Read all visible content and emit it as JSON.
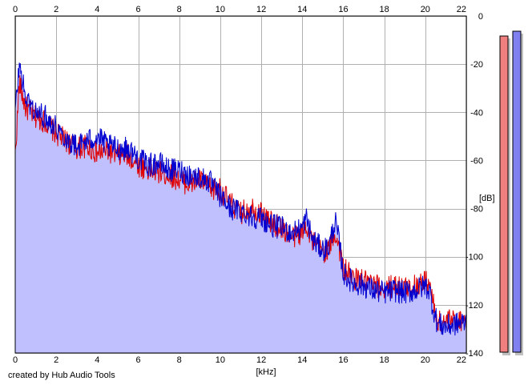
{
  "footer": {
    "credit": "created by Hub Audio Tools"
  },
  "chart_data": {
    "type": "area",
    "xlabel": "[kHz]",
    "ylabel": "[dB]",
    "xlim": [
      0,
      22
    ],
    "ylim": [
      -140,
      0
    ],
    "x_ticks": [
      0,
      2,
      4,
      6,
      8,
      10,
      12,
      14,
      16,
      18,
      20,
      22
    ],
    "y_ticks": [
      0,
      -20,
      -40,
      -60,
      -80,
      -100,
      -120,
      -140
    ],
    "grid": true,
    "series": [
      {
        "color": "#e00000",
        "x": [
          0,
          0.2,
          0.5,
          1,
          1.5,
          2,
          2.5,
          3,
          3.5,
          4,
          4.5,
          5,
          5.5,
          6,
          6.5,
          7,
          7.5,
          8,
          8.5,
          9,
          9.5,
          10,
          10.5,
          11,
          11.5,
          12,
          12.5,
          13,
          13.5,
          14,
          14.2,
          14.5,
          15,
          15.3,
          15.6,
          15.8,
          16,
          16.5,
          17,
          17.5,
          18,
          18.5,
          19,
          19.5,
          20,
          20.2,
          20.4,
          20.6,
          21,
          21.5,
          22
        ],
        "values": [
          -58,
          -28,
          -38,
          -42,
          -44,
          -49,
          -52,
          -55,
          -54,
          -57,
          -56,
          -58,
          -58,
          -62,
          -64,
          -65,
          -66,
          -68,
          -70,
          -68,
          -72,
          -72,
          -78,
          -82,
          -79,
          -82,
          -86,
          -88,
          -92,
          -90,
          -86,
          -94,
          -98,
          -97,
          -90,
          -96,
          -105,
          -109,
          -110,
          -112,
          -113,
          -112,
          -113,
          -112,
          -110,
          -111,
          -120,
          -127,
          -127,
          -126,
          -126
        ]
      },
      {
        "color": "#0000d0",
        "x": [
          0,
          0.2,
          0.5,
          1,
          1.5,
          2,
          2.5,
          3,
          3.5,
          4,
          4.5,
          5,
          5.5,
          6,
          6.5,
          7,
          7.5,
          8,
          8.5,
          9,
          9.5,
          10,
          10.5,
          11,
          11.5,
          12,
          12.5,
          13,
          13.5,
          14,
          14.2,
          14.5,
          15,
          15.3,
          15.6,
          15.8,
          16,
          16.5,
          17,
          17.5,
          18,
          18.5,
          19,
          19.5,
          20,
          20.2,
          20.4,
          20.6,
          21,
          21.5,
          22
        ],
        "values": [
          -40,
          -20,
          -34,
          -40,
          -42,
          -46,
          -51,
          -54,
          -52,
          -50,
          -54,
          -55,
          -55,
          -59,
          -62,
          -61,
          -64,
          -64,
          -66,
          -67,
          -69,
          -75,
          -80,
          -81,
          -83,
          -84,
          -87,
          -88,
          -90,
          -88,
          -84,
          -93,
          -97,
          -96,
          -85,
          -94,
          -107,
          -111,
          -112,
          -114,
          -115,
          -114,
          -115,
          -114,
          -112,
          -114,
          -122,
          -128,
          -129,
          -128,
          -127
        ]
      }
    ]
  }
}
